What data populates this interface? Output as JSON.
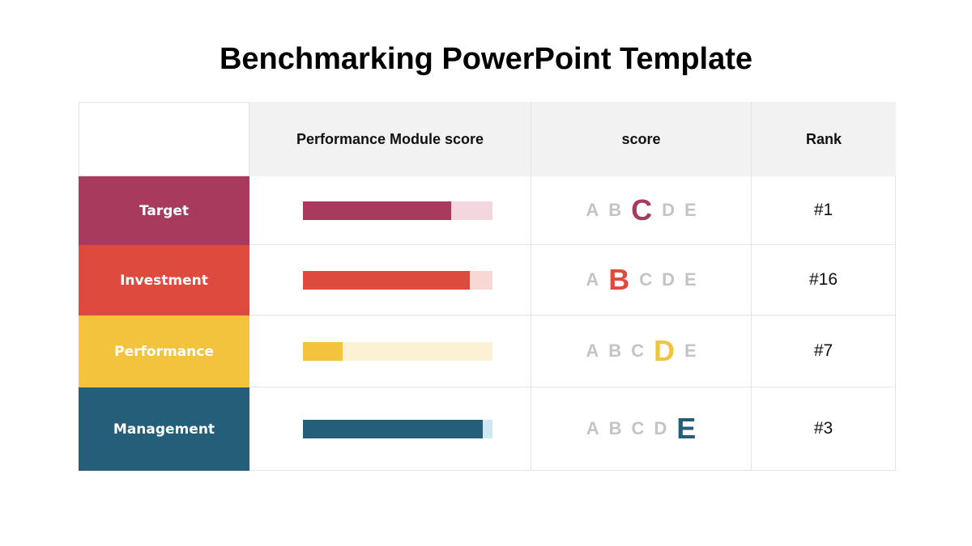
{
  "title": "Benchmarking PowerPoint Template",
  "headers": {
    "blank": "",
    "performance": "Performance  Module score",
    "score": "score",
    "rank": "Rank"
  },
  "grade_letters": [
    "A",
    "B",
    "C",
    "D",
    "E"
  ],
  "rows": [
    {
      "label": "Target",
      "color": "#a83a5e",
      "track_color": "#f3d6de",
      "progress": 0.78,
      "active_grade": "C",
      "rank": "#1"
    },
    {
      "label": "Investment",
      "color": "#df4a3f",
      "track_color": "#f8d7d5",
      "progress": 0.88,
      "active_grade": "B",
      "rank": "#16"
    },
    {
      "label": "Performance",
      "color": "#f3c33e",
      "track_color": "#fcf0d5",
      "progress": 0.21,
      "active_grade": "D",
      "rank": "#7"
    },
    {
      "label": "Management",
      "color": "#255e79",
      "track_color": "#cfe7f2",
      "progress": 0.95,
      "active_grade": "E",
      "rank": "#3"
    }
  ]
}
